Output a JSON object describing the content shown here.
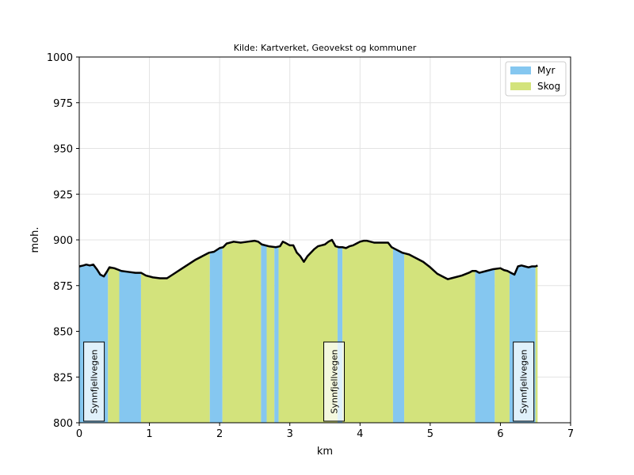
{
  "chart_data": {
    "type": "area",
    "title": "Kilde: Kartverket, Geovekst og kommuner",
    "xlabel": "km",
    "ylabel": "moh.",
    "xlim": [
      0,
      7
    ],
    "ylim": [
      800,
      1000
    ],
    "xticks": [
      "0",
      "1",
      "2",
      "3",
      "4",
      "5",
      "6",
      "7"
    ],
    "yticks": [
      "800",
      "825",
      "850",
      "875",
      "900",
      "925",
      "950",
      "975",
      "1000"
    ],
    "grid": true,
    "legend_position": "top-right",
    "legend": [
      {
        "name": "Myr",
        "color": "#85c7f0"
      },
      {
        "name": "Skog",
        "color": "#d3e37c"
      }
    ],
    "elevation": {
      "x": [
        0.0,
        0.06,
        0.1,
        0.15,
        0.2,
        0.25,
        0.3,
        0.35,
        0.4,
        0.43,
        0.5,
        0.6,
        0.7,
        0.8,
        0.88,
        0.95,
        1.05,
        1.15,
        1.25,
        1.35,
        1.45,
        1.55,
        1.65,
        1.75,
        1.85,
        1.92,
        2.0,
        2.05,
        2.1,
        2.2,
        2.3,
        2.4,
        2.5,
        2.55,
        2.6,
        2.7,
        2.8,
        2.86,
        2.9,
        2.93,
        3.0,
        3.05,
        3.1,
        3.15,
        3.2,
        3.25,
        3.3,
        3.35,
        3.4,
        3.45,
        3.5,
        3.55,
        3.6,
        3.63,
        3.65,
        3.7,
        3.75,
        3.8,
        3.85,
        3.9,
        3.95,
        4.0,
        4.05,
        4.1,
        4.15,
        4.2,
        4.3,
        4.4,
        4.45,
        4.5,
        4.6,
        4.65,
        4.7,
        4.8,
        4.9,
        5.0,
        5.1,
        5.2,
        5.25,
        5.3,
        5.35,
        5.45,
        5.55,
        5.6,
        5.65,
        5.7,
        5.8,
        5.9,
        6.0,
        6.05,
        6.1,
        6.15,
        6.2,
        6.25,
        6.3,
        6.35,
        6.4,
        6.45,
        6.5,
        6.53
      ],
      "y": [
        885.5,
        886,
        886.5,
        886,
        886.5,
        884,
        881,
        880,
        883,
        885,
        884.5,
        883,
        882.5,
        882,
        882,
        880.5,
        879.5,
        879,
        879,
        881.5,
        884,
        886.5,
        889,
        891,
        893,
        893.5,
        895.5,
        896,
        898,
        899,
        898.5,
        899,
        899.5,
        899,
        897.5,
        896.5,
        896,
        896.5,
        899,
        898.5,
        897,
        897,
        893,
        891,
        888,
        891,
        893,
        895,
        896.5,
        897,
        897.5,
        899,
        900,
        898,
        896.5,
        896,
        896,
        895.5,
        896.5,
        897,
        898,
        899,
        899.5,
        899.5,
        899,
        898.5,
        898.5,
        898.5,
        896,
        895,
        893,
        892.5,
        892,
        890,
        888,
        885,
        881.5,
        879.5,
        878.5,
        879,
        879.5,
        880.5,
        882,
        883,
        883,
        882,
        883,
        884,
        884.5,
        883.5,
        883,
        882,
        881,
        885.5,
        886,
        885.5,
        885,
        885.5,
        885.5,
        886
      ]
    },
    "bands": [
      {
        "type": "Myr",
        "x0": 0.0,
        "x1": 0.41
      },
      {
        "type": "Skog",
        "x0": 0.41,
        "x1": 0.57
      },
      {
        "type": "Myr",
        "x0": 0.57,
        "x1": 0.88
      },
      {
        "type": "Skog",
        "x0": 0.88,
        "x1": 1.86
      },
      {
        "type": "Myr",
        "x0": 1.86,
        "x1": 2.04
      },
      {
        "type": "Skog",
        "x0": 2.04,
        "x1": 2.59
      },
      {
        "type": "Myr",
        "x0": 2.59,
        "x1": 2.67
      },
      {
        "type": "Skog",
        "x0": 2.67,
        "x1": 2.78
      },
      {
        "type": "Myr",
        "x0": 2.78,
        "x1": 2.84
      },
      {
        "type": "Skog",
        "x0": 2.84,
        "x1": 3.68
      },
      {
        "type": "Myr",
        "x0": 3.68,
        "x1": 3.75
      },
      {
        "type": "Skog",
        "x0": 3.75,
        "x1": 4.47
      },
      {
        "type": "Myr",
        "x0": 4.47,
        "x1": 4.63
      },
      {
        "type": "Skog",
        "x0": 4.63,
        "x1": 5.64
      },
      {
        "type": "Myr",
        "x0": 5.64,
        "x1": 5.92
      },
      {
        "type": "Skog",
        "x0": 5.92,
        "x1": 6.13
      },
      {
        "type": "Myr",
        "x0": 6.13,
        "x1": 6.5
      },
      {
        "type": "Skog",
        "x0": 6.5,
        "x1": 6.53
      }
    ],
    "annotations": [
      {
        "text": "Synnfjellvegen",
        "x": 0.21
      },
      {
        "text": "Synnfjellvegen",
        "x": 3.63
      },
      {
        "text": "Synnfjellvegen",
        "x": 6.33
      }
    ]
  }
}
